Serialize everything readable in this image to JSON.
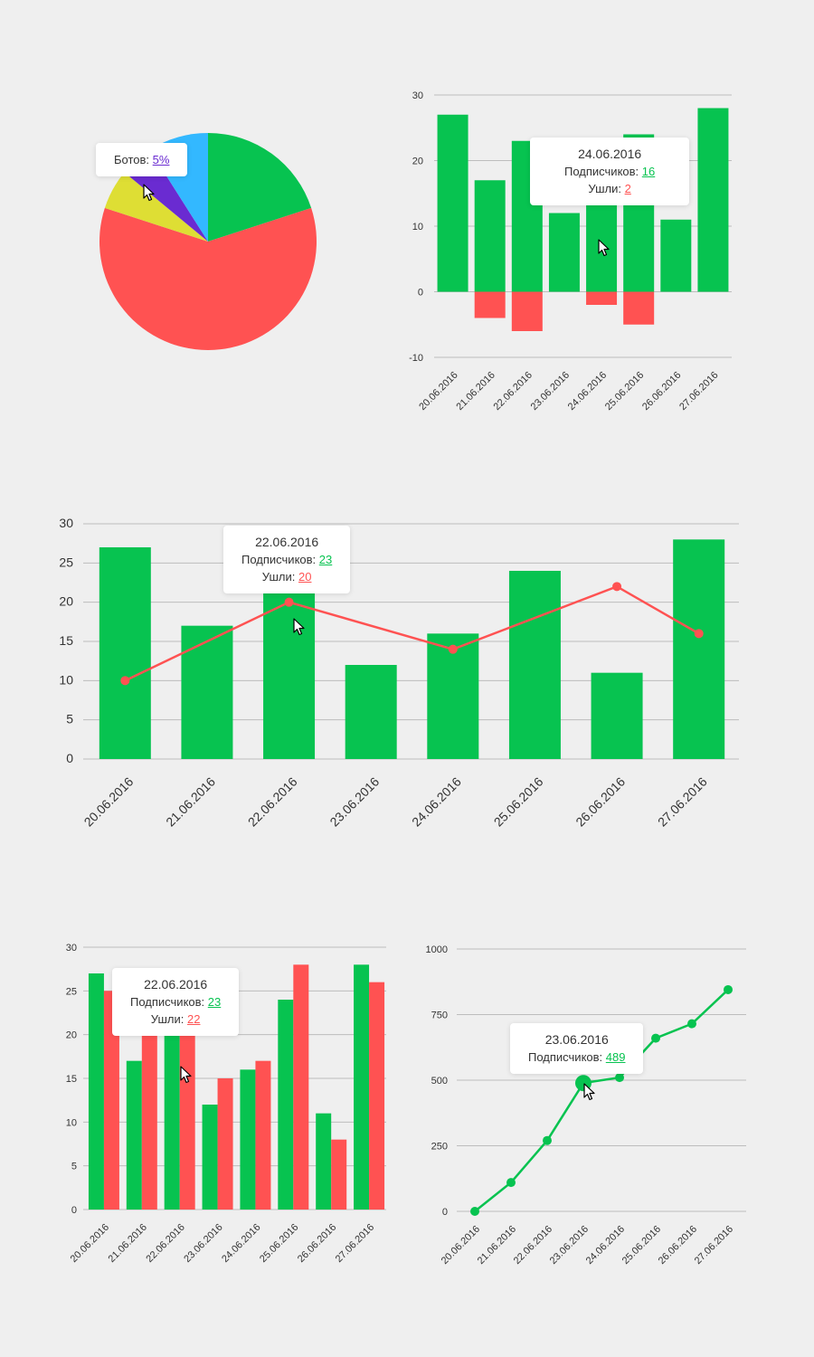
{
  "colors": {
    "green": "#07c350",
    "red": "#ff5252",
    "yellow": "#dede34",
    "purple": "#6a2bd1",
    "blue": "#33b8ff",
    "grid": "#bdbdbd",
    "background": "#efefef"
  },
  "labels": {
    "subscribers": "Подписчиков:",
    "left": "Ушли:"
  },
  "chart_data": [
    {
      "type": "pie",
      "slices": [
        {
          "label": "",
          "value": 20,
          "color": "#07c350"
        },
        {
          "label": "",
          "value": 60,
          "color": "#ff5252"
        },
        {
          "label": "",
          "value": 6,
          "color": "#dede34"
        },
        {
          "label": "Ботов",
          "value": 5,
          "color": "#6a2bd1"
        },
        {
          "label": "",
          "value": 9,
          "color": "#33b8ff"
        }
      ],
      "tooltip": {
        "label": "Ботов:",
        "value": "5%"
      }
    },
    {
      "type": "bar",
      "categories": [
        "20.06.2016",
        "21.06.2016",
        "22.06.2016",
        "23.06.2016",
        "24.06.2016",
        "25.06.2016",
        "26.06.2016",
        "27.06.2016"
      ],
      "series": [
        {
          "name": "Подписчиков",
          "values": [
            27,
            17,
            23,
            12,
            16,
            24,
            11,
            28
          ]
        },
        {
          "name": "Ушли",
          "values": [
            0,
            -4,
            -6,
            0,
            -2,
            -5,
            0,
            0
          ]
        }
      ],
      "yticks": [
        "30",
        "20",
        "10",
        "0",
        "-10"
      ],
      "ylim": [
        -10,
        30
      ],
      "grid": true,
      "tooltip": {
        "date": "24.06.2016",
        "subscribers": "16",
        "left": "2"
      }
    },
    {
      "type": "bar",
      "categories": [
        "20.06.2016",
        "21.06.2016",
        "22.06.2016",
        "23.06.2016",
        "24.06.2016",
        "25.06.2016",
        "26.06.2016",
        "27.06.2016"
      ],
      "series": [
        {
          "name": "Подписчиков",
          "values": [
            27,
            17,
            23,
            12,
            16,
            24,
            11,
            28
          ]
        },
        {
          "name": "Ушли",
          "values": [
            10,
            null,
            20,
            null,
            14,
            null,
            22,
            16
          ]
        }
      ],
      "yticks": [
        "30",
        "25",
        "20",
        "15",
        "10",
        "5",
        "0"
      ],
      "ylim": [
        0,
        30
      ],
      "grid": true,
      "tooltip": {
        "date": "22.06.2016",
        "subscribers": "23",
        "left": "20"
      }
    },
    {
      "type": "bar",
      "categories": [
        "20.06.2016",
        "21.06.2016",
        "22.06.2016",
        "23.06.2016",
        "24.06.2016",
        "25.06.2016",
        "26.06.2016",
        "27.06.2016"
      ],
      "series": [
        {
          "name": "Подписчиков",
          "values": [
            27,
            17,
            23,
            12,
            16,
            24,
            11,
            28
          ]
        },
        {
          "name": "Ушли",
          "values": [
            25,
            20,
            22,
            15,
            17,
            28,
            8,
            26
          ]
        }
      ],
      "yticks": [
        "30",
        "25",
        "20",
        "15",
        "10",
        "5",
        "0"
      ],
      "ylim": [
        0,
        30
      ],
      "grid": true,
      "tooltip": {
        "date": "22.06.2016",
        "subscribers": "23",
        "left": "22"
      }
    },
    {
      "type": "line",
      "categories": [
        "20.06.2016",
        "21.06.2016",
        "22.06.2016",
        "23.06.2016",
        "24.06.2016",
        "25.06.2016",
        "26.06.2016",
        "27.06.2016"
      ],
      "series": [
        {
          "name": "Подписчиков",
          "values": [
            0,
            110,
            270,
            489,
            510,
            660,
            715,
            845
          ]
        }
      ],
      "yticks": [
        "1000",
        "750",
        "500",
        "250",
        "0"
      ],
      "ylim": [
        0,
        1000
      ],
      "grid": true,
      "tooltip": {
        "date": "23.06.2016",
        "subscribers": "489"
      }
    }
  ]
}
